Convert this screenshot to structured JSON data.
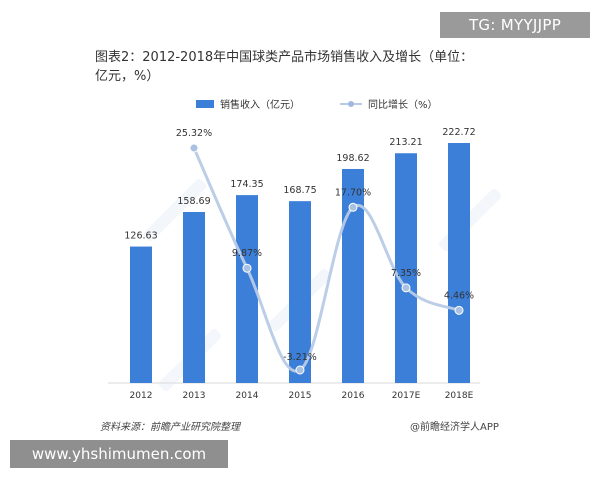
{
  "overlay": {
    "tg_text": "TG: MYYJJPP",
    "url_text": "www.yhshimumen.com"
  },
  "chart_data": {
    "type": "bar+line",
    "title_line1": "图表2：2012-2018年中国球类产品市场销售收入及增长（单位：",
    "title_line2": "亿元，%）",
    "categories": [
      "2012",
      "2013",
      "2014",
      "2015",
      "2016",
      "2017E",
      "2018E"
    ],
    "series": [
      {
        "name": "销售收入（亿元）",
        "kind": "bar",
        "color": "#3c7fd9",
        "values": [
          126.63,
          158.69,
          174.35,
          168.75,
          198.62,
          213.21,
          222.72
        ],
        "labels": [
          "126.63",
          "158.69",
          "174.35",
          "168.75",
          "198.62",
          "213.21",
          "222.72"
        ]
      },
      {
        "name": "同比增长（%）",
        "kind": "line",
        "color": "#b8cbe6",
        "values": [
          null,
          25.32,
          9.87,
          -3.21,
          17.7,
          7.35,
          4.46
        ],
        "labels": [
          "",
          "25.32%",
          "9.87%",
          "-3.21%",
          "17.70%",
          "7.35%",
          "4.46%"
        ]
      }
    ],
    "bar_axis_range": [
      0,
      240
    ],
    "line_axis_range": [
      -5,
      30
    ],
    "legend_position": "top",
    "grid": false
  },
  "footer": {
    "source_left": "资料来源：前瞻产业研究院整理",
    "source_right": "@前瞻经济学人APP"
  }
}
